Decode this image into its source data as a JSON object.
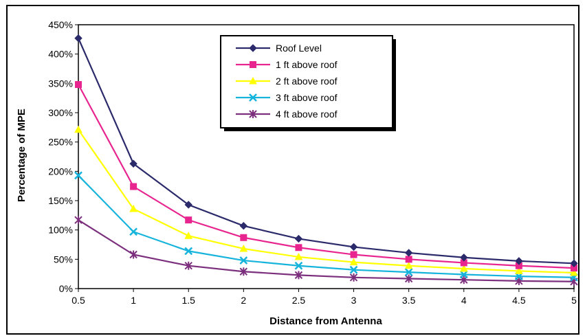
{
  "chart_data": {
    "type": "line",
    "title": "",
    "xlabel": "Distance from Antenna",
    "ylabel": "Percentage of MPE",
    "x": [
      0.5,
      1,
      1.5,
      2,
      2.5,
      3,
      3.5,
      4,
      4.5,
      5
    ],
    "x_tick_labels": [
      "0.5",
      "1",
      "1.5",
      "2",
      "2.5",
      "3",
      "3.5",
      "4",
      "4.5",
      "5"
    ],
    "ylim": [
      0,
      450
    ],
    "y_ticks": [
      0,
      50,
      100,
      150,
      200,
      250,
      300,
      350,
      400,
      450
    ],
    "y_tick_labels": [
      "0%",
      "50%",
      "100%",
      "150%",
      "200%",
      "250%",
      "300%",
      "350%",
      "400%",
      "450%"
    ],
    "grid": "horizontal dashed",
    "legend_position": "top-center",
    "series": [
      {
        "name": "Roof Level",
        "color": "#2b2a6b",
        "marker": "diamond",
        "values": [
          427,
          213,
          143,
          107,
          85,
          71,
          61,
          53,
          47,
          43
        ]
      },
      {
        "name": "1 ft above roof",
        "color": "#e8258f",
        "marker": "square",
        "values": [
          348,
          174,
          117,
          87,
          70,
          58,
          50,
          44,
          39,
          35
        ]
      },
      {
        "name": "2 ft above roof",
        "color": "#ffff00",
        "marker": "triangle",
        "values": [
          271,
          136,
          90,
          68,
          54,
          45,
          39,
          34,
          30,
          27
        ]
      },
      {
        "name": "3 ft above roof",
        "color": "#16b4dc",
        "marker": "x",
        "values": [
          193,
          97,
          64,
          48,
          39,
          32,
          28,
          24,
          21,
          19
        ]
      },
      {
        "name": "4 ft above roof",
        "color": "#7b2f7d",
        "marker": "asterisk",
        "values": [
          117,
          58,
          39,
          29,
          23,
          19,
          17,
          15,
          13,
          12
        ]
      }
    ]
  }
}
